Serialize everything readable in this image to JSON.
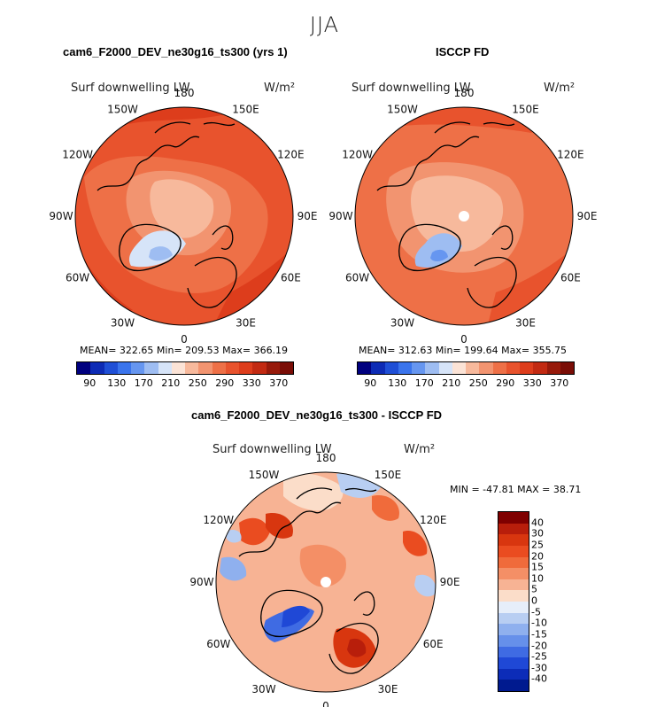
{
  "figure": {
    "season": "JJA"
  },
  "chart_data": [
    {
      "type": "heatmap",
      "projection": "north-polar-stereographic",
      "title": "cam6_F2000_DEV_ne30g16_ts300 (yrs 1)",
      "variable": "Surf downwelling LW",
      "units": "W/m²",
      "stats": "MEAN= 322.65  Min= 209.53  Max= 366.19",
      "mean": 322.65,
      "min": 209.53,
      "max": 366.19,
      "longitude_labels": [
        "180",
        "150E",
        "120E",
        "90E",
        "60E",
        "30E",
        "0",
        "30W",
        "60W",
        "90W",
        "120W",
        "150W"
      ],
      "colorbar_ticks": [
        "90",
        "130",
        "170",
        "210",
        "250",
        "290",
        "330",
        "370"
      ],
      "colorbar_levels": [
        90,
        110,
        130,
        150,
        170,
        190,
        210,
        230,
        250,
        270,
        290,
        310,
        330,
        350,
        370
      ]
    },
    {
      "type": "heatmap",
      "projection": "north-polar-stereographic",
      "title": "ISCCP FD",
      "variable": "Surf downwelling LW",
      "units": "W/m²",
      "stats": "MEAN= 312.63  Min= 199.64  Max= 355.75",
      "mean": 312.63,
      "min": 199.64,
      "max": 355.75,
      "longitude_labels": [
        "180",
        "150E",
        "120E",
        "90E",
        "60E",
        "30E",
        "0",
        "30W",
        "60W",
        "90W",
        "120W",
        "150W"
      ],
      "colorbar_ticks": [
        "90",
        "130",
        "170",
        "210",
        "250",
        "290",
        "330",
        "370"
      ],
      "colorbar_levels": [
        90,
        110,
        130,
        150,
        170,
        190,
        210,
        230,
        250,
        270,
        290,
        310,
        330,
        350,
        370
      ]
    },
    {
      "type": "heatmap",
      "projection": "north-polar-stereographic",
      "title": "cam6_F2000_DEV_ne30g16_ts300 - ISCCP FD",
      "variable": "Surf downwelling LW",
      "units": "W/m²",
      "stats": "MIN = -47.81 MAX =  38.71",
      "min": -47.81,
      "max": 38.71,
      "longitude_labels": [
        "180",
        "150E",
        "120E",
        "90E",
        "60E",
        "30E",
        "0",
        "30W",
        "60W",
        "90W",
        "120W",
        "150W"
      ],
      "colorbar_ticks": [
        "40",
        "30",
        "25",
        "20",
        "15",
        "10",
        "5",
        "0",
        "-5",
        "-10",
        "-15",
        "-20",
        "-25",
        "-30",
        "-40"
      ],
      "colorbar_levels": [
        -40,
        -30,
        -25,
        -20,
        -15,
        -10,
        -5,
        0,
        5,
        10,
        15,
        20,
        25,
        30,
        40
      ]
    }
  ],
  "palettes": {
    "absolute": [
      "#00007f",
      "#0d2bb5",
      "#1f4fd6",
      "#3a74ec",
      "#6696f0",
      "#9ebdf2",
      "#d6e4f8",
      "#fbe3d6",
      "#f7b99c",
      "#f29470",
      "#ee7047",
      "#e8532d",
      "#dd3d1c",
      "#c22a12",
      "#971a0b",
      "#7a0d06"
    ],
    "difference": [
      "#7f0000",
      "#b81e0b",
      "#d8360f",
      "#ea4c20",
      "#f06b3b",
      "#f48f66",
      "#f7b394",
      "#fbddc9",
      "#e6eefa",
      "#b8cef2",
      "#8fb0ee",
      "#6690ea",
      "#3f6be3",
      "#1f48d6",
      "#0c2cb8",
      "#001a8f"
    ]
  },
  "map_colors": {
    "model_base": "#e8532d",
    "obs_base": "#ee7047",
    "diff_base": "#f7b394",
    "white_hole": "#ffffff"
  }
}
